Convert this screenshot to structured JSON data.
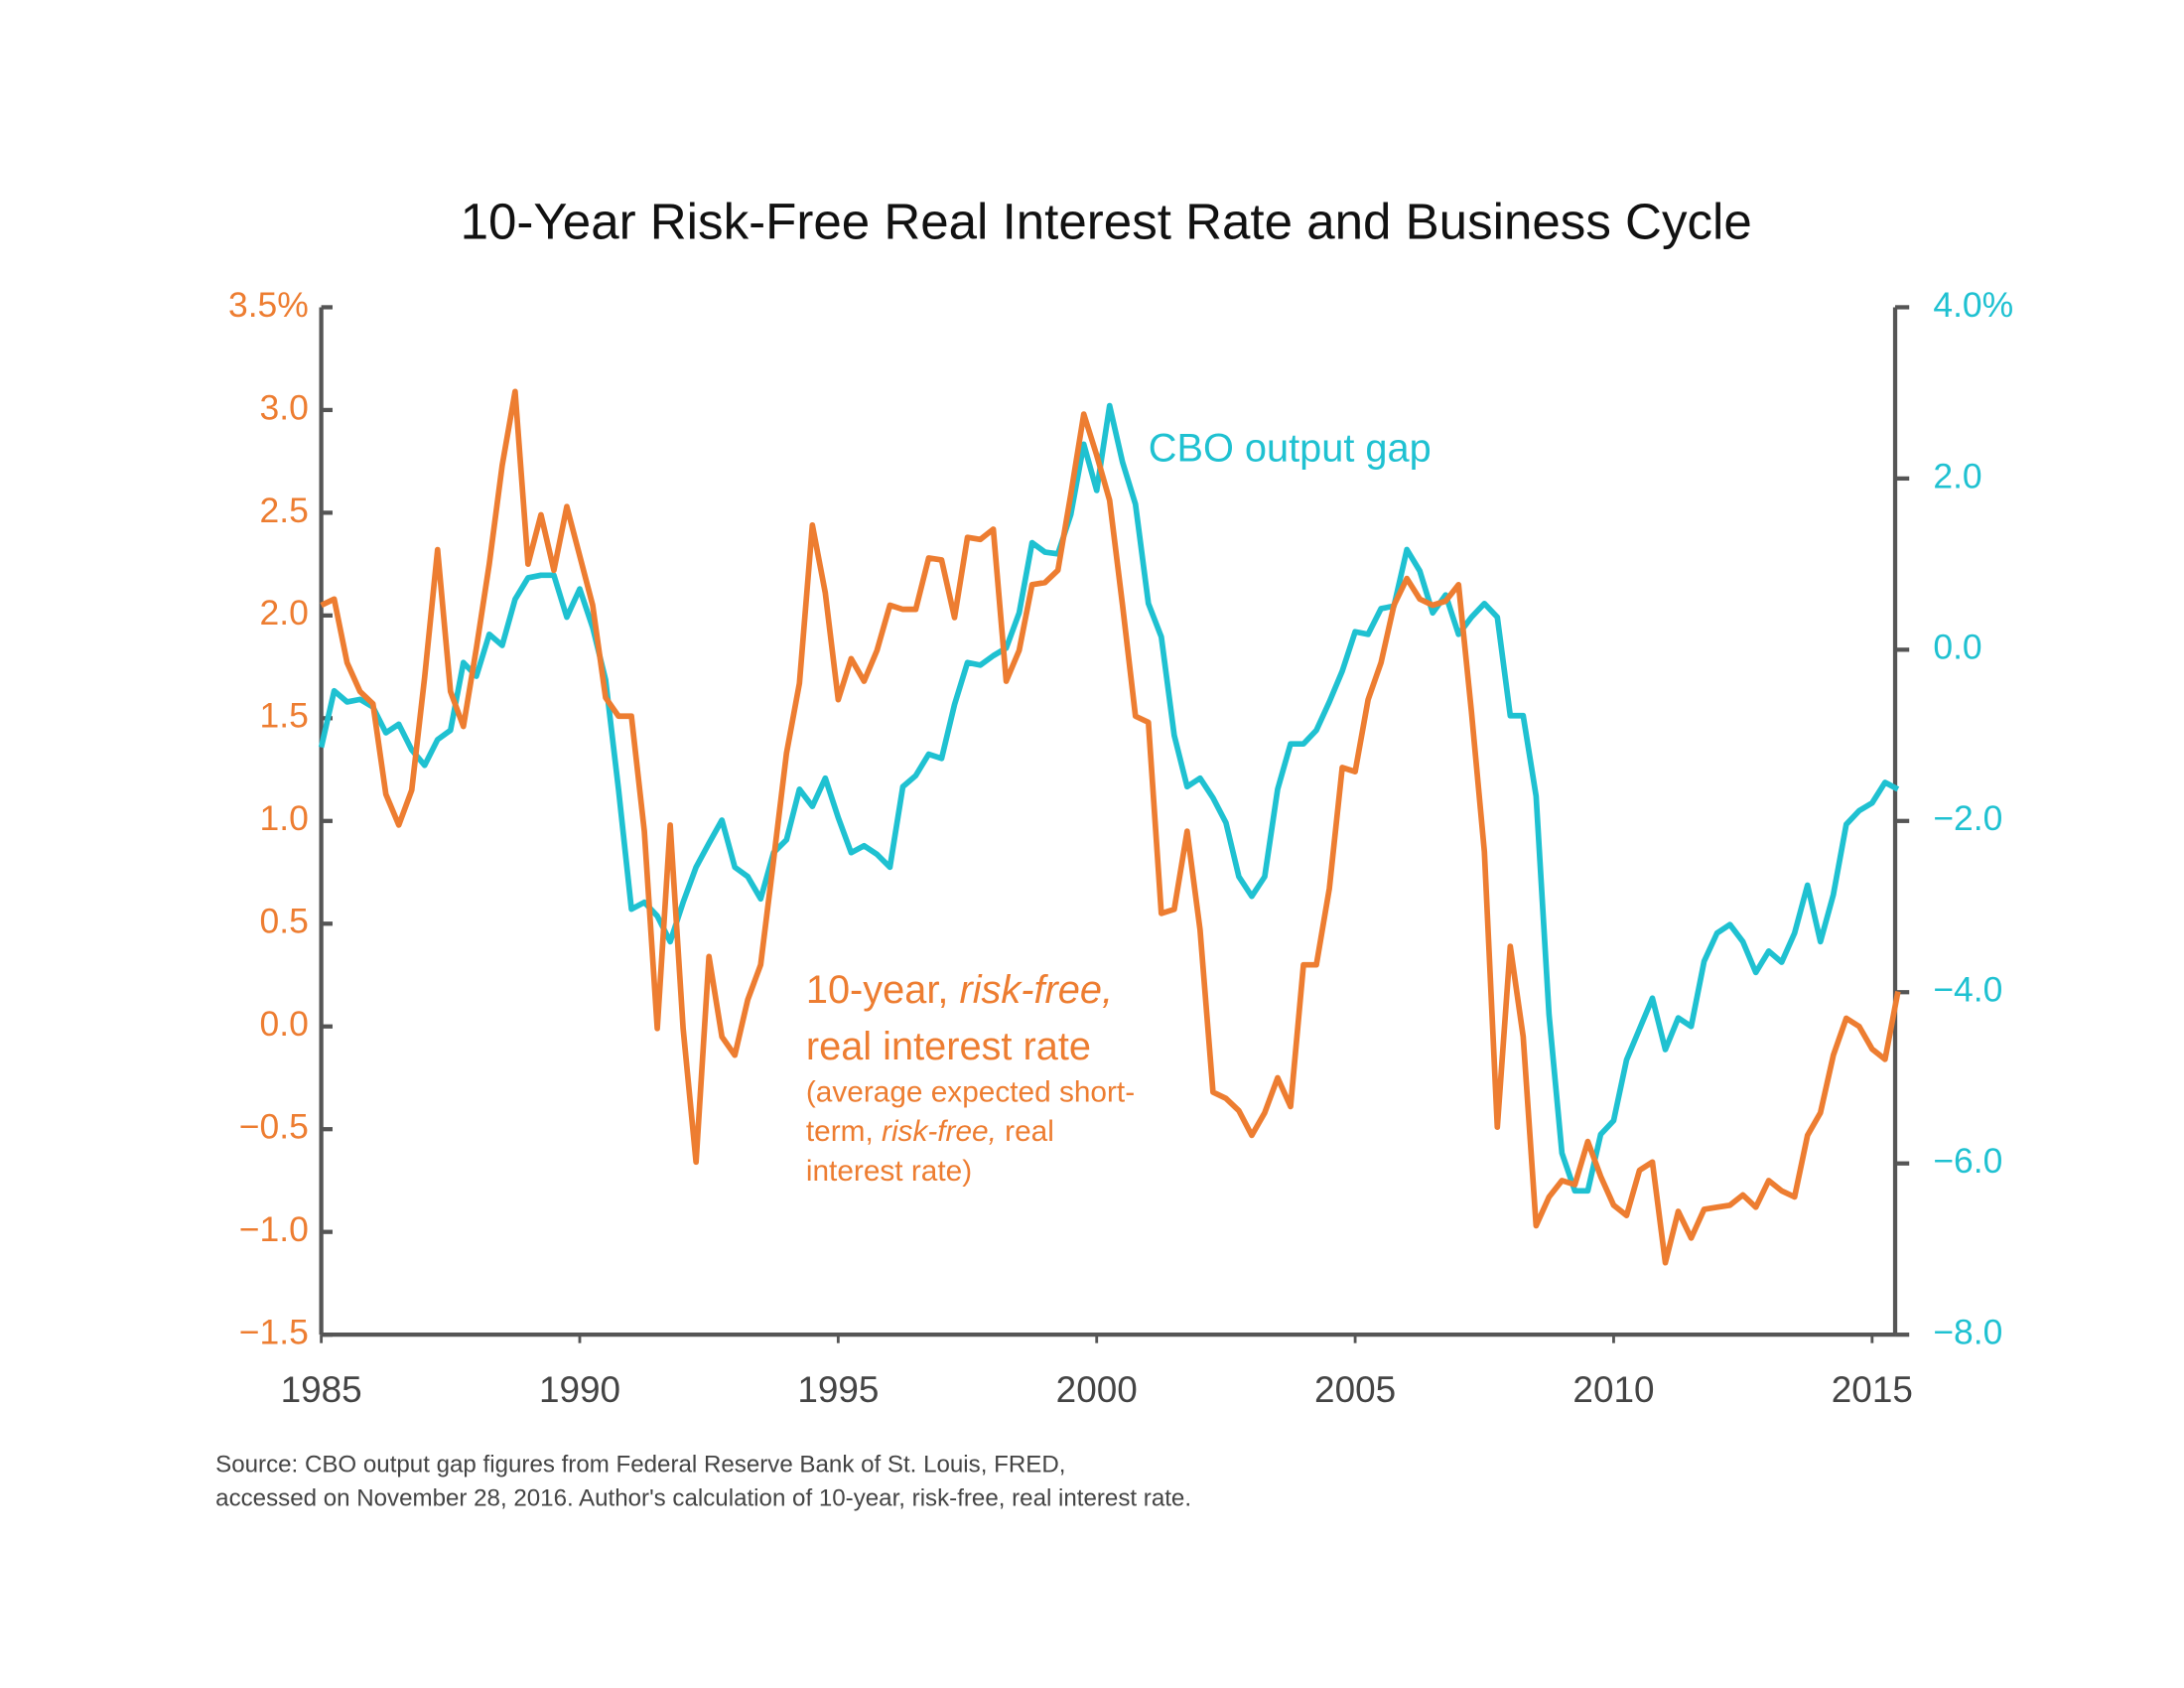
{
  "chart_data": {
    "type": "line",
    "title": "10-Year Risk-Free Real Interest Rate and Business Cycle",
    "x": [
      1985,
      1985.25,
      1985.5,
      1985.75,
      1986,
      1986.25,
      1986.5,
      1986.75,
      1987,
      1987.25,
      1987.5,
      1987.75,
      1988,
      1988.25,
      1988.5,
      1988.75,
      1989,
      1989.25,
      1989.5,
      1989.75,
      1990,
      1990.25,
      1990.5,
      1990.75,
      1991,
      1991.25,
      1991.5,
      1991.75,
      1992,
      1992.25,
      1992.5,
      1992.75,
      1993,
      1993.25,
      1993.5,
      1993.75,
      1994,
      1994.25,
      1994.5,
      1994.75,
      1995,
      1995.25,
      1995.5,
      1995.75,
      1996,
      1996.25,
      1996.5,
      1996.75,
      1997,
      1997.25,
      1997.5,
      1997.75,
      1998,
      1998.25,
      1998.5,
      1998.75,
      1999,
      1999.25,
      1999.5,
      1999.75,
      2000,
      2000.25,
      2000.5,
      2000.75,
      2001,
      2001.25,
      2001.5,
      2001.75,
      2002,
      2002.25,
      2002.5,
      2002.75,
      2003,
      2003.25,
      2003.5,
      2003.75,
      2004,
      2004.25,
      2004.5,
      2004.75,
      2005,
      2005.25,
      2005.5,
      2005.75,
      2006,
      2006.25,
      2006.5,
      2006.75,
      2007,
      2007.25,
      2007.5,
      2007.75,
      2008,
      2008.25,
      2008.5,
      2008.75,
      2009,
      2009.25,
      2009.5,
      2009.75,
      2010,
      2010.25,
      2010.5,
      2010.75,
      2011,
      2011.25,
      2011.5,
      2011.75,
      2012,
      2012.25,
      2012.5,
      2012.75,
      2013,
      2013.25,
      2013.5,
      2013.75,
      2014,
      2014.25,
      2014.5,
      2014.75,
      2015,
      2015.25,
      2015.5
    ],
    "series": [
      {
        "color": "#ed7d31",
        "axis": "y",
        "values": [
          2.05,
          2.08,
          1.77,
          1.63,
          1.57,
          1.13,
          0.98,
          1.15,
          1.7,
          2.32,
          1.63,
          1.46,
          1.84,
          2.25,
          2.73,
          3.09,
          2.25,
          2.49,
          2.22,
          2.53,
          2.29,
          2.05,
          1.6,
          1.51,
          1.51,
          0.95,
          -0.01,
          0.98,
          -0.01,
          -0.66,
          0.34,
          -0.05,
          -0.14,
          0.13,
          0.3,
          0.81,
          1.33,
          1.67,
          2.44,
          2.11,
          1.59,
          1.79,
          1.68,
          1.83,
          2.05,
          2.03,
          2.03,
          2.28,
          2.27,
          1.99,
          2.38,
          2.37,
          2.42,
          1.68,
          1.83,
          2.15,
          2.16,
          2.22,
          2.59,
          2.98,
          2.78,
          2.56,
          2.05,
          1.51,
          1.48,
          0.55,
          0.57,
          0.95,
          0.47,
          -0.32,
          -0.35,
          -0.41,
          -0.53,
          -0.42,
          -0.25,
          -0.39,
          0.3,
          0.3,
          0.67,
          1.26,
          1.24,
          1.59,
          1.77,
          2.05,
          2.18,
          2.08,
          2.05,
          2.07,
          2.15,
          1.53,
          0.85,
          -0.49,
          0.39,
          -0.05,
          -0.97,
          -0.83,
          -0.75,
          -0.77,
          -0.56,
          -0.73,
          -0.87,
          -0.92,
          -0.7,
          -0.66,
          -1.15,
          -0.9,
          -1.03,
          -0.89,
          -0.88,
          -0.87,
          -0.82,
          -0.88,
          -0.75,
          -0.8,
          -0.83,
          -0.53,
          -0.42,
          -0.14,
          0.04,
          0.0,
          -0.11,
          -0.16,
          0.17
        ]
      },
      {
        "name": "CBO output gap",
        "color": "#1fc1d1",
        "axis": "y2",
        "values": [
          -1.14,
          -0.48,
          -0.61,
          -0.58,
          -0.67,
          -0.97,
          -0.87,
          -1.17,
          -1.35,
          -1.05,
          -0.94,
          -0.15,
          -0.31,
          0.18,
          0.05,
          0.59,
          0.84,
          0.87,
          0.87,
          0.38,
          0.71,
          0.26,
          -0.35,
          -1.63,
          -3.03,
          -2.95,
          -3.11,
          -3.41,
          -2.95,
          -2.54,
          -2.26,
          -1.99,
          -2.54,
          -2.65,
          -2.91,
          -2.37,
          -2.22,
          -1.63,
          -1.83,
          -1.5,
          -1.96,
          -2.37,
          -2.29,
          -2.39,
          -2.54,
          -1.6,
          -1.47,
          -1.22,
          -1.27,
          -0.64,
          -0.15,
          -0.18,
          -0.07,
          0.02,
          0.43,
          1.25,
          1.14,
          1.12,
          1.58,
          2.4,
          1.86,
          2.85,
          2.19,
          1.7,
          0.54,
          0.15,
          -1.0,
          -1.6,
          -1.5,
          -1.73,
          -2.02,
          -2.65,
          -2.88,
          -2.65,
          -1.63,
          -1.1,
          -1.1,
          -0.94,
          -0.61,
          -0.25,
          0.21,
          0.18,
          0.48,
          0.51,
          1.17,
          0.92,
          0.43,
          0.64,
          0.18,
          0.38,
          0.54,
          0.38,
          -0.77,
          -0.77,
          -1.71,
          -4.26,
          -5.88,
          -6.32,
          -6.32,
          -5.66,
          -5.5,
          -4.79,
          -4.43,
          -4.07,
          -4.67,
          -4.3,
          -4.4,
          -3.64,
          -3.31,
          -3.21,
          -3.41,
          -3.77,
          -3.52,
          -3.65,
          -3.31,
          -2.75,
          -3.41,
          -2.86,
          -2.04,
          -1.88,
          -1.79,
          -1.55,
          -1.63
        ]
      }
    ],
    "xlim": [
      1985,
      2015.5
    ],
    "xticks": [
      1985,
      1990,
      1995,
      2000,
      2005,
      2010,
      2015
    ],
    "ylim": [
      -1.5,
      3.5
    ],
    "yticks": [
      {
        "value": -1.5,
        "label": "−1.5"
      },
      {
        "value": -1,
        "label": "−1.0"
      },
      {
        "value": -0.5,
        "label": "−0.5"
      },
      {
        "value": 0,
        "label": "0.0"
      },
      0.5,
      {
        "value": 1,
        "label": "1.0"
      },
      1.5,
      {
        "value": 2,
        "label": "2.0"
      },
      2.5,
      {
        "value": 3,
        "label": "3.0"
      },
      {
        "value": 3.5,
        "label": "3.5%"
      }
    ],
    "y2lim": [
      -8,
      4
    ],
    "y2ticks": [
      {
        "value": -8,
        "label": "−8.0"
      },
      {
        "value": -6,
        "label": "−6.0"
      },
      {
        "value": -4,
        "label": "−4.0"
      },
      {
        "value": -2,
        "label": "−2.0"
      },
      {
        "value": 0,
        "label": "0.0"
      },
      {
        "value": 2,
        "label": "2.0"
      },
      {
        "value": 4,
        "label": "4.0%"
      }
    ],
    "grid": false,
    "annotations": {
      "rate_label": [
        [
          {
            "text": "10-year, "
          },
          {
            "text": "risk-free,",
            "italic": true
          }
        ],
        [
          {
            "text": "real interest rate"
          }
        ]
      ],
      "rate_note": [
        [
          {
            "text": "(average expected short-"
          }
        ],
        [
          {
            "text": "term, "
          },
          {
            "text": "risk-free,",
            "italic": true
          },
          {
            "text": " real"
          }
        ],
        [
          {
            "text": "interest rate)"
          }
        ]
      ]
    },
    "source": [
      "Source: CBO output gap figures from Federal Reserve Bank of St. Louis, FRED,",
      "accessed on November 28, 2016. Author's calculation of 10-year, risk-free, real interest rate."
    ]
  }
}
